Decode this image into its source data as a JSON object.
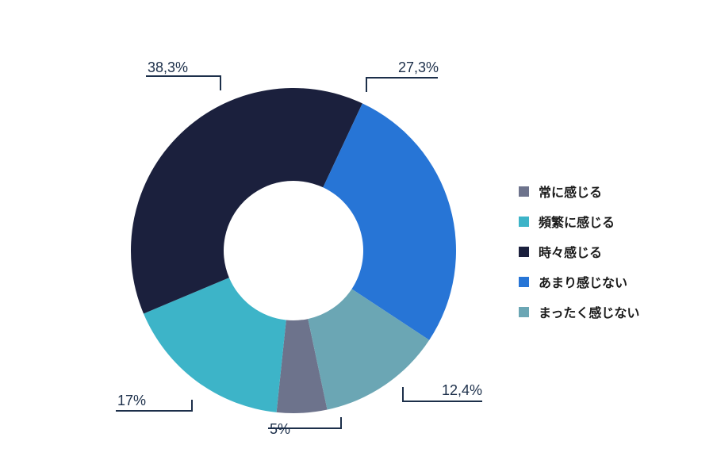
{
  "chart_data": {
    "type": "pie",
    "variant": "donut",
    "title": "",
    "categories": [
      "常に感じる",
      "頻繁に感じる",
      "時々感じる",
      "あまり感じない",
      "まったく感じない"
    ],
    "values": [
      5,
      17,
      38.3,
      27.3,
      12.4
    ],
    "value_labels": [
      "5%",
      "17%",
      "38,3%",
      "27,3%",
      "12,4%"
    ],
    "colors": [
      "#6d738c",
      "#3db4c8",
      "#1b203d",
      "#2775d6",
      "#6ba6b4"
    ],
    "legend_position": "right"
  }
}
